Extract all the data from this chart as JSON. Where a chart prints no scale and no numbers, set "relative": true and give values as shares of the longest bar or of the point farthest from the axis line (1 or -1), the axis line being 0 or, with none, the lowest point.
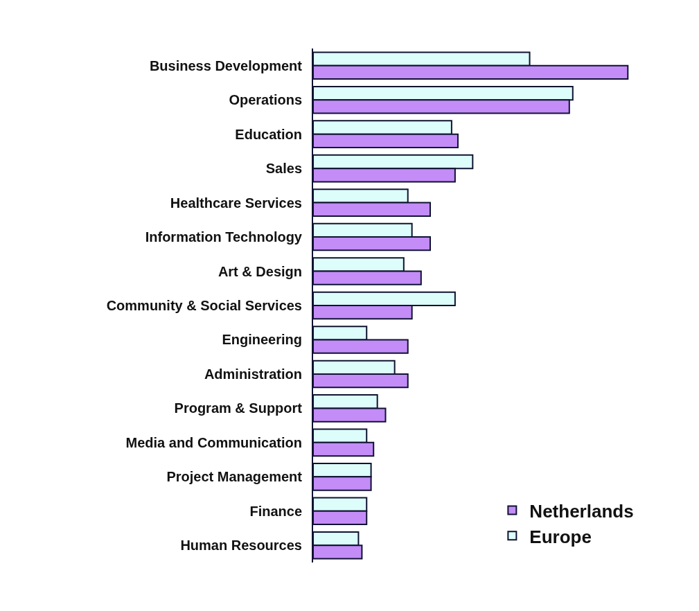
{
  "chart_data": {
    "type": "bar",
    "orientation": "horizontal",
    "relative": true,
    "legend": "bottom right",
    "categories": [
      "Business Development",
      "Operations",
      "Education",
      "Sales",
      "Healthcare Services",
      "Information Technology",
      "Art & Design",
      "Community & Social Services",
      "Engineering",
      "Administration",
      "Program & Support",
      "Media and Communication",
      "Project Management",
      "Finance",
      "Human Resources"
    ],
    "series": [
      {
        "name": "Netherlands",
        "color": "#c38cf7",
        "values": [
          1,
          0.814,
          0.46,
          0.451,
          0.372,
          0.372,
          0.343,
          0.314,
          0.301,
          0.301,
          0.23,
          0.192,
          0.184,
          0.17,
          0.155
        ]
      },
      {
        "name": "Europe",
        "color": "#dcfdfa",
        "values": [
          0.688,
          0.825,
          0.44,
          0.507,
          0.301,
          0.314,
          0.288,
          0.451,
          0.17,
          0.259,
          0.204,
          0.17,
          0.184,
          0.17,
          0.144
        ]
      }
    ]
  }
}
